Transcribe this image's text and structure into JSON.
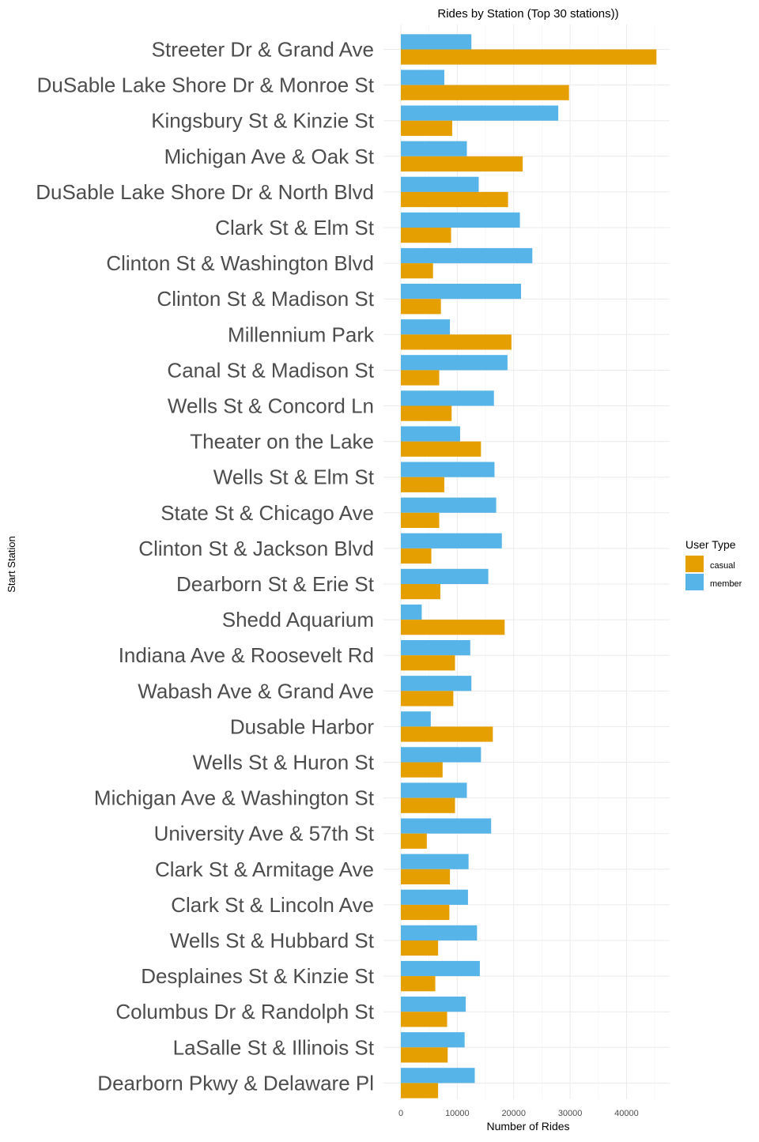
{
  "chart_data": {
    "type": "bar",
    "orientation": "horizontal",
    "title": "Rides by Station (Top 30 stations))",
    "xlabel": "Number of Rides",
    "ylabel": "Start Station",
    "xlim": [
      0,
      47000
    ],
    "x_ticks": [
      "0",
      "10000",
      "20000",
      "30000",
      "40000"
    ],
    "x_tick_values": [
      0,
      10000,
      20000,
      30000,
      40000
    ],
    "grid": true,
    "legend": {
      "title": "User Type",
      "placement": "right",
      "entries": [
        {
          "name": "casual",
          "color": "#E69F00"
        },
        {
          "name": "member",
          "color": "#56B4E9"
        }
      ]
    },
    "categories": [
      "Streeter Dr & Grand Ave",
      "DuSable Lake Shore Dr & Monroe St",
      "Kingsbury St & Kinzie St",
      "Michigan Ave & Oak St",
      "DuSable Lake Shore Dr & North Blvd",
      "Clark St & Elm St",
      "Clinton St & Washington Blvd",
      "Clinton St & Madison St",
      "Millennium Park",
      "Canal St & Madison St",
      "Wells St & Concord Ln",
      "Theater on the Lake",
      "Wells St & Elm St",
      "State St & Chicago Ave",
      "Clinton St & Jackson Blvd",
      "Dearborn St & Erie St",
      "Shedd Aquarium",
      "Indiana Ave & Roosevelt Rd",
      "Wabash Ave & Grand Ave",
      "Dusable Harbor",
      "Wells St & Huron St",
      "Michigan Ave & Washington St",
      "University Ave & 57th St",
      "Clark St & Armitage Ave",
      "Clark St & Lincoln Ave",
      "Wells St & Hubbard St",
      "Desplaines St & Kinzie St",
      "Columbus Dr & Randolph St",
      "LaSalle St & Illinois St",
      "Dearborn Pkwy & Delaware Pl"
    ],
    "series": [
      {
        "name": "member",
        "color": "#56B4E9",
        "values": [
          12500,
          7700,
          27900,
          11700,
          13800,
          21100,
          23300,
          21300,
          8700,
          18900,
          16500,
          10500,
          16600,
          16900,
          17900,
          15500,
          3700,
          12300,
          12500,
          5300,
          14200,
          11700,
          16000,
          12000,
          11900,
          13500,
          14000,
          11500,
          11300,
          13100
        ]
      },
      {
        "name": "casual",
        "color": "#E69F00",
        "values": [
          45300,
          29800,
          9100,
          21600,
          19000,
          8900,
          5700,
          7100,
          19600,
          6800,
          9000,
          14200,
          7700,
          6800,
          5400,
          7000,
          18400,
          9600,
          9300,
          16300,
          7400,
          9600,
          4600,
          8700,
          8600,
          6600,
          6100,
          8200,
          8300,
          6600
        ]
      }
    ]
  }
}
